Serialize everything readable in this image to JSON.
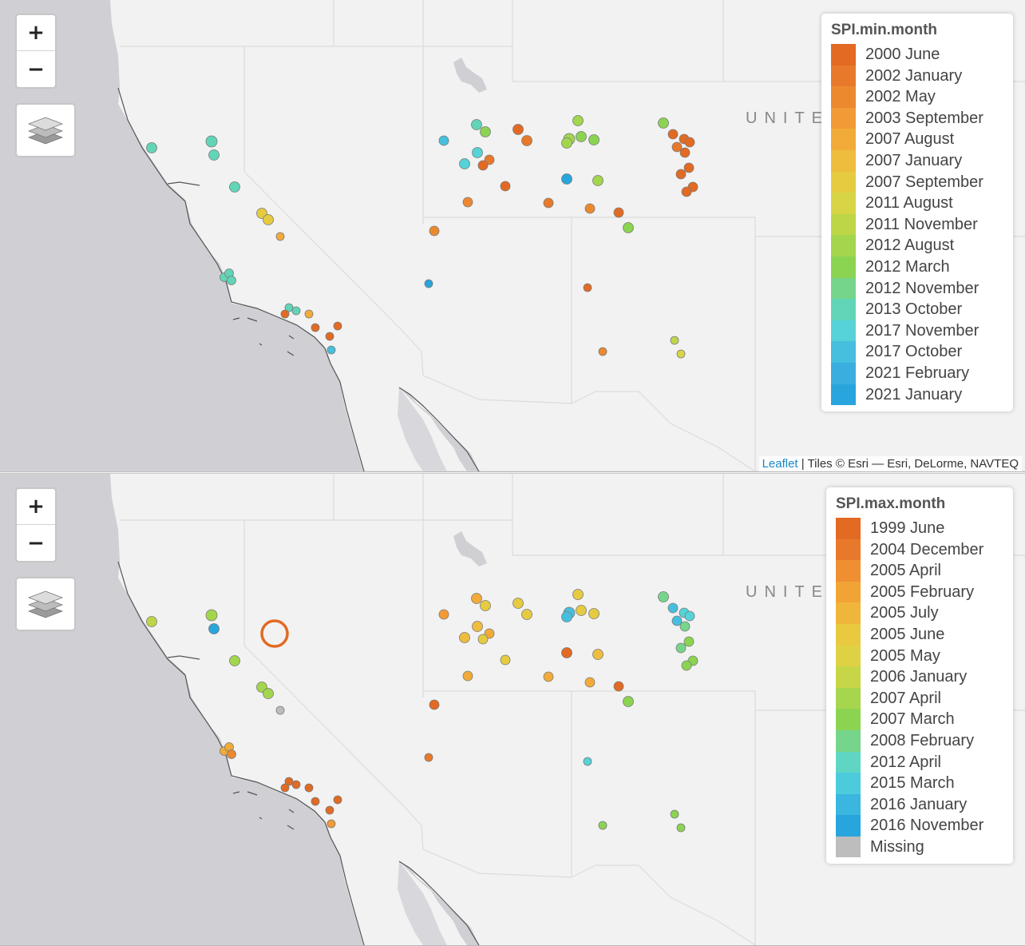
{
  "map_top": {
    "legend": {
      "title": "SPI.min.month",
      "labels": [
        "2000 June",
        "2002 January",
        "2002 May",
        "2003 September",
        "2007 August",
        "2007 January",
        "2007 September",
        "2011 August",
        "2011 November",
        "2012 August",
        "2012 March",
        "2012 November",
        "2013 October",
        "2017 November",
        "2017 October",
        "2021 February",
        "2021 January"
      ],
      "colors": [
        "#e26a22",
        "#e8792a",
        "#ec892f",
        "#f29a36",
        "#f2ab38",
        "#eebd3e",
        "#e6cb41",
        "#d7d545",
        "#bdd648",
        "#a3d64d",
        "#8bd452",
        "#76d58a",
        "#62d5b8",
        "#55d3d8",
        "#46bfdf",
        "#3aaede",
        "#28a5dc"
      ]
    },
    "country_label": "UNITE",
    "attribution": {
      "link": "Leaflet",
      "text": " | Tiles © Esri — Esri, DeLorme, NAVTEQ"
    },
    "zoom_in": "+",
    "zoom_out": "−"
  },
  "map_bottom": {
    "legend": {
      "title": "SPI.max.month",
      "labels": [
        "1999 June",
        "2004 December",
        "2005 April",
        "2005 February",
        "2005 July",
        "2005 June",
        "2005 May",
        "2006 January",
        "2007 April",
        "2007 March",
        "2008 February",
        "2012 April",
        "2015 March",
        "2016 January",
        "2016 November"
      ],
      "colors": [
        "#e26a22",
        "#e8792a",
        "#ef8f31",
        "#f2a336",
        "#f0b63b",
        "#e9c940",
        "#ded244",
        "#c6d648",
        "#a6d64d",
        "#8bd452",
        "#76d58a",
        "#5fd6c4",
        "#4ccbdc",
        "#3ab6df",
        "#28a5dc"
      ],
      "missing_label": "Missing",
      "missing_color": "#bdbdbd"
    },
    "country_label": "UNITE",
    "zoom_in": "+",
    "zoom_out": "−"
  },
  "markers": [
    {
      "id": 1,
      "min": "#62d5b8",
      "max": "#bdd648"
    },
    {
      "id": 2,
      "min": "#62d5b8",
      "max": "#a3d64d"
    },
    {
      "id": 3,
      "min": "#62d5b8",
      "max": "#28a5dc"
    },
    {
      "id": 4,
      "min": "#62d5b8",
      "max": "#a3d64d"
    },
    {
      "id": 5,
      "min": "#e6cb41",
      "max": "#a3d64d"
    },
    {
      "id": 6,
      "min": "#e6cb41",
      "max": "#a3d64d"
    },
    {
      "id": 7,
      "min": "#f2ab38",
      "max": "#bdbdbd"
    },
    {
      "id": 8,
      "min": "#62d5b8",
      "max": "#f2ab38"
    },
    {
      "id": 9,
      "min": "#62d5b8",
      "max": "#f2ab38"
    },
    {
      "id": 10,
      "min": "#62d5b8",
      "max": "#ec892f"
    },
    {
      "id": 11,
      "min": "#62d5b8",
      "max": "#e26a22"
    },
    {
      "id": 12,
      "min": "#62d5b8",
      "max": "#e26a22"
    },
    {
      "id": 13,
      "min": "#f2ab38",
      "max": "#e26a22"
    },
    {
      "id": 14,
      "min": "#e26a22",
      "max": "#e26a22"
    },
    {
      "id": 15,
      "min": "#e26a22",
      "max": "#e26a22"
    },
    {
      "id": 16,
      "min": "#e26a22",
      "max": "#e26a22"
    },
    {
      "id": 17,
      "min": "#e26a22",
      "max": "#e26a22"
    },
    {
      "id": 18,
      "min": "#46bfdf",
      "max": "#f29a36"
    },
    {
      "id": 19,
      "min": "#62d5b8",
      "max": "#f2ab38"
    },
    {
      "id": 20,
      "min": "#8bd452",
      "max": "#e6cb41"
    },
    {
      "id": 21,
      "min": "#46bfdf",
      "max": "#f29a36"
    },
    {
      "id": 22,
      "min": "#55d3d8",
      "max": "#eebd3e"
    },
    {
      "id": 23,
      "min": "#55d3d8",
      "max": "#eebd3e"
    },
    {
      "id": 24,
      "min": "#e8792a",
      "max": "#f2ab38"
    },
    {
      "id": 25,
      "min": "#e26a22",
      "max": "#e6cb41"
    },
    {
      "id": 26,
      "min": "#e26a22",
      "max": "#e6cb41"
    },
    {
      "id": 27,
      "min": "#e8792a",
      "max": "#e6cb41"
    },
    {
      "id": 28,
      "min": "#e26a22",
      "max": "#e6cb41"
    },
    {
      "id": 29,
      "min": "#ec892f",
      "max": "#f2ab38"
    },
    {
      "id": 30,
      "min": "#a3d64d",
      "max": "#e6cb41"
    },
    {
      "id": 31,
      "min": "#a3d64d",
      "max": "#46bfdf"
    },
    {
      "id": 32,
      "min": "#a3d64d",
      "max": "#46bfdf"
    },
    {
      "id": 33,
      "min": "#8bd452",
      "max": "#e6cb41"
    },
    {
      "id": 34,
      "min": "#8bd452",
      "max": "#e6cb41"
    },
    {
      "id": 35,
      "min": "#28a5dc",
      "max": "#e26a22"
    },
    {
      "id": 36,
      "min": "#a3d64d",
      "max": "#eebd3e"
    },
    {
      "id": 37,
      "min": "#e8792a",
      "max": "#f2ab38"
    },
    {
      "id": 38,
      "min": "#ec892f",
      "max": "#f2ab38"
    },
    {
      "id": 39,
      "min": "#e26a22",
      "max": "#e26a22"
    },
    {
      "id": 40,
      "min": "#8bd452",
      "max": "#8bd452"
    },
    {
      "id": 41,
      "min": "#8bd452",
      "max": "#76d58a"
    },
    {
      "id": 42,
      "min": "#e26a22",
      "max": "#46bfdf"
    },
    {
      "id": 43,
      "min": "#e26a22",
      "max": "#55d3d8"
    },
    {
      "id": 44,
      "min": "#e26a22",
      "max": "#55d3d8"
    },
    {
      "id": 45,
      "min": "#e8792a",
      "max": "#46bfdf"
    },
    {
      "id": 46,
      "min": "#e26a22",
      "max": "#76d58a"
    },
    {
      "id": 47,
      "min": "#e26a22",
      "max": "#8bd452"
    },
    {
      "id": 48,
      "min": "#e26a22",
      "max": "#76d58a"
    },
    {
      "id": 49,
      "min": "#e26a22",
      "max": "#8bd452"
    },
    {
      "id": 50,
      "min": "#e26a22",
      "max": "#8bd452"
    },
    {
      "id": 51,
      "min": "#ec892f",
      "max": "#e26a22"
    },
    {
      "id": 52,
      "min": "#28a5dc",
      "max": "#e8792a"
    },
    {
      "id": 53,
      "min": "#e26a22",
      "max": "#55d3d8"
    },
    {
      "id": 54,
      "min": "#ec892f",
      "max": "#8bd452"
    },
    {
      "id": 55,
      "min": "#bdd648",
      "max": "#8bd452"
    },
    {
      "id": 56,
      "min": "#d7d545",
      "max": "#8bd452"
    }
  ]
}
